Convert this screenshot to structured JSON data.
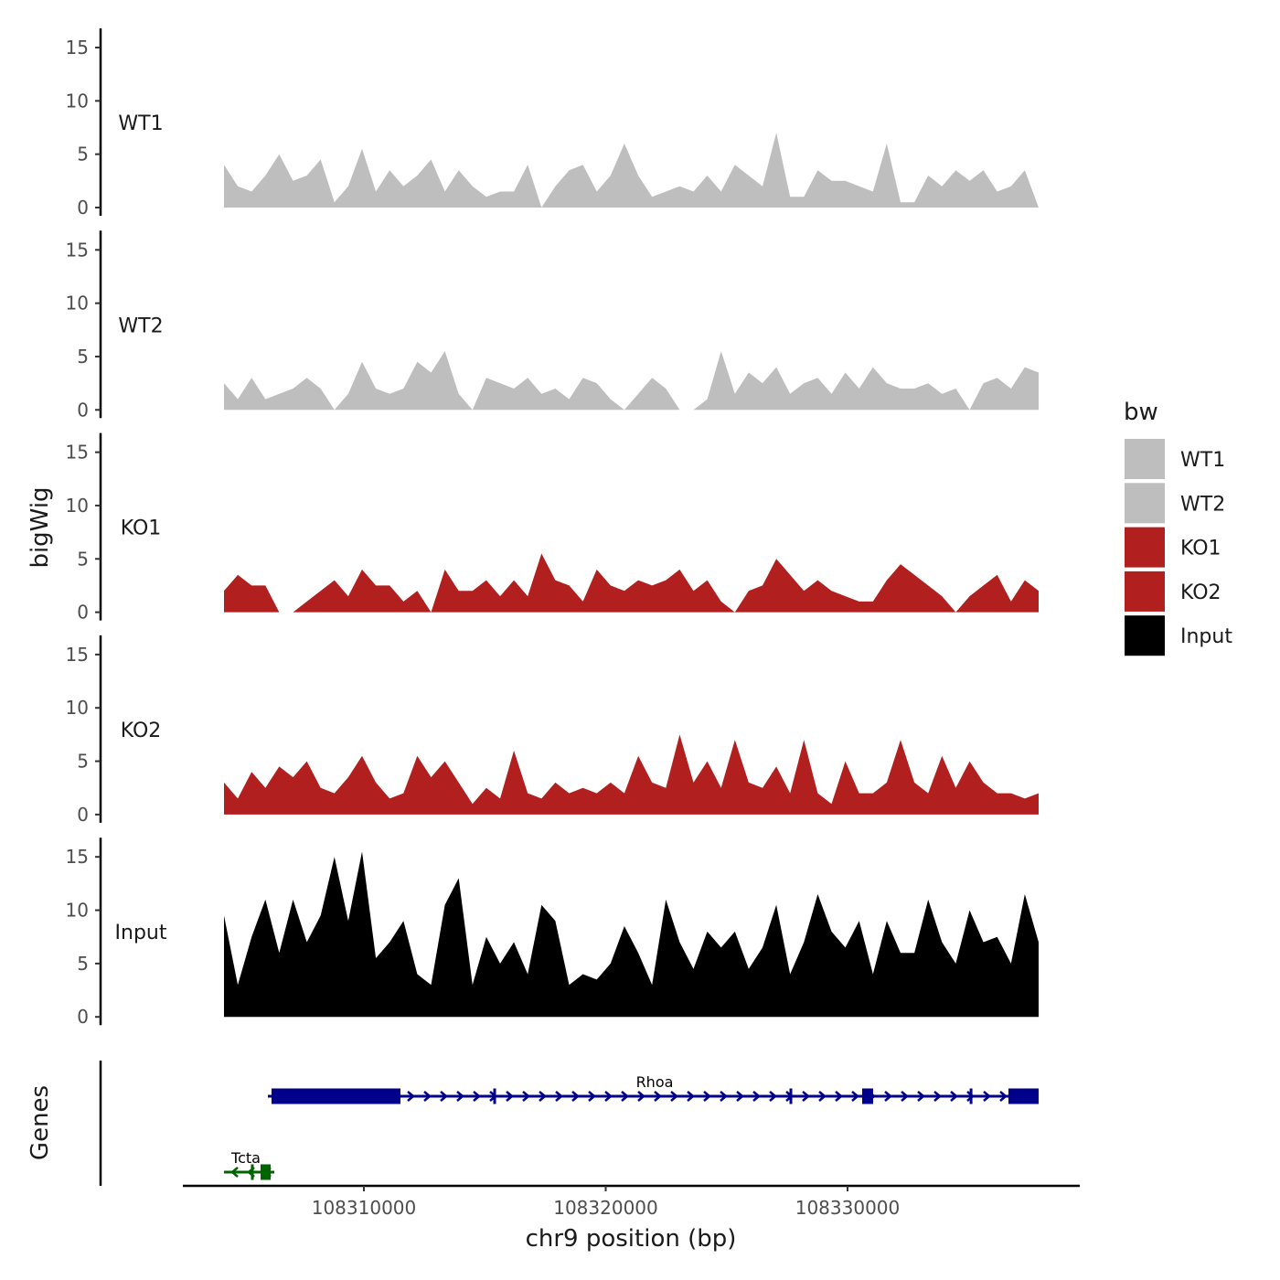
{
  "chart_data": {
    "type": "area",
    "xlabel": "chr9 position (bp)",
    "ylabel": "bigWig",
    "genes_label": "Genes",
    "x_range": [
      108302514,
      108339603
    ],
    "x_ticks": [
      108310000,
      108320000,
      108330000
    ],
    "x_tick_labels": [
      "108310000",
      "108320000",
      "108330000"
    ],
    "y_range": [
      0,
      15.5
    ],
    "y_ticks": [
      0,
      5,
      10,
      15
    ],
    "y_tick_labels": [
      "0",
      "5",
      "10",
      "15"
    ],
    "x_start": 108304215,
    "x_end": 108337902,
    "legend": {
      "title": "bw",
      "position": "right",
      "entries": [
        {
          "label": "WT1",
          "color": "#bebebe"
        },
        {
          "label": "WT2",
          "color": "#bebebe"
        },
        {
          "label": "KO1",
          "color": "#b21f1f"
        },
        {
          "label": "KO2",
          "color": "#b21f1f"
        },
        {
          "label": "Input",
          "color": "#000000"
        }
      ]
    },
    "series": [
      {
        "name": "WT1",
        "color": "#bebebe",
        "values": [
          4,
          2,
          1.5,
          3,
          5,
          2.5,
          3,
          4.5,
          0.5,
          2,
          5.5,
          1.5,
          3.5,
          2,
          3,
          4.5,
          1.5,
          3.5,
          2,
          1,
          1.5,
          1.5,
          4,
          0,
          2,
          3.5,
          4,
          1.5,
          3,
          6,
          3,
          1,
          1.5,
          2,
          1.5,
          3,
          1.5,
          4,
          3,
          2,
          7,
          1,
          1,
          3.5,
          2.5,
          2.5,
          2,
          1.5,
          6,
          0.5,
          0.5,
          3,
          2,
          3.5,
          2.5,
          3.5,
          1.5,
          2,
          3.5,
          0
        ]
      },
      {
        "name": "WT2",
        "color": "#bebebe",
        "values": [
          2.5,
          1,
          3,
          1,
          1.5,
          2,
          3,
          2,
          0,
          1.5,
          4.5,
          2,
          1.5,
          2,
          4.5,
          3.5,
          5.5,
          1.5,
          0,
          3,
          2.5,
          2,
          3,
          1.5,
          2,
          1,
          3,
          2.5,
          1,
          0,
          1.5,
          3,
          2,
          0,
          0,
          1,
          5.5,
          1.5,
          3.5,
          2.5,
          4,
          1.5,
          2.5,
          3,
          1.5,
          3.5,
          2,
          4,
          2.5,
          2,
          2,
          2.5,
          1.5,
          2,
          0,
          2.5,
          3,
          2,
          4,
          3.5
        ]
      },
      {
        "name": "KO1",
        "color": "#b21f1f",
        "values": [
          2,
          3.5,
          2.5,
          2.5,
          0,
          0,
          1,
          2,
          3,
          1.5,
          4,
          2.5,
          2.5,
          1,
          2,
          0,
          4,
          2,
          2,
          3,
          1.5,
          3,
          1.5,
          5.5,
          3,
          2.5,
          1,
          4,
          2.5,
          2,
          3,
          2.5,
          3,
          4,
          2,
          3,
          1,
          0,
          2,
          2.5,
          5,
          3.5,
          2,
          3,
          2,
          1.5,
          1,
          1,
          3,
          4.5,
          3.5,
          2.5,
          1.5,
          0,
          1.5,
          2.5,
          3.5,
          1,
          3,
          2
        ]
      },
      {
        "name": "KO2",
        "color": "#b21f1f",
        "values": [
          3,
          1.5,
          4,
          2.5,
          4.5,
          3.5,
          5,
          2.5,
          2,
          3.5,
          5.5,
          3,
          1.5,
          2,
          5.5,
          3.5,
          5,
          3,
          1,
          2.5,
          1.5,
          6,
          2,
          1.5,
          3,
          2,
          2.5,
          2,
          3,
          2,
          5.5,
          3,
          2.5,
          7.5,
          3,
          5,
          2.5,
          7,
          3,
          2.5,
          4.5,
          2,
          7,
          2,
          1,
          5,
          2,
          2,
          3,
          7,
          3,
          2,
          5.5,
          2.5,
          5,
          3,
          2,
          2,
          1.5,
          2
        ]
      },
      {
        "name": "Input",
        "color": "#000000",
        "values": [
          9.5,
          3,
          7.5,
          11,
          6,
          11,
          7,
          9.5,
          15,
          9,
          15.5,
          5.5,
          7,
          9,
          4,
          3,
          10.5,
          13,
          3,
          7.5,
          5,
          7,
          4,
          10.5,
          9,
          3,
          4,
          3.5,
          5,
          8.5,
          6,
          3,
          11,
          7,
          4.5,
          8,
          6.5,
          8,
          4.5,
          6.5,
          10.5,
          4,
          7,
          11.5,
          8,
          6.5,
          9,
          4,
          9,
          6,
          6,
          11,
          7,
          5,
          10,
          7,
          7.5,
          5,
          11.5,
          7
        ]
      }
    ],
    "genes": [
      {
        "name": "Rhoa",
        "strand": "+",
        "color": "#00008b",
        "start": 108306030,
        "end": 108337902,
        "exons": [
          [
            108306181,
            108311512
          ],
          [
            108315350,
            108315460
          ],
          [
            108327600,
            108327710
          ],
          [
            108330605,
            108331059
          ],
          [
            108335050,
            108335160
          ],
          [
            108336654,
            108337902
          ]
        ]
      },
      {
        "name": "Tcta",
        "strand": "-",
        "color": "#006400",
        "start": 108304216,
        "end": 108306295,
        "exons": [
          [
            108305330,
            108305440
          ],
          [
            108305728,
            108306144
          ]
        ]
      }
    ]
  }
}
